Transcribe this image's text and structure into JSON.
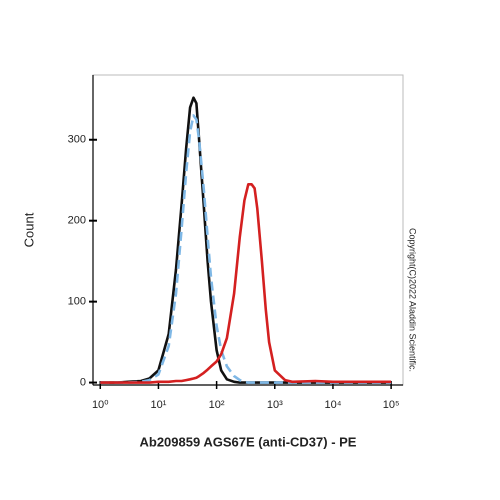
{
  "chart_data": {
    "type": "line",
    "x_label": "Ab209859 AGS67E (anti-CD37) - PE",
    "y_label": "Count",
    "annotation": "Copyright(C)2022 Aladdin Scientific.",
    "x_log": true,
    "x": [
      1,
      2,
      3,
      5,
      7,
      10,
      15,
      20,
      25,
      30,
      35,
      40,
      45,
      50,
      60,
      70,
      80,
      100,
      120,
      150,
      200,
      250,
      300,
      350,
      400,
      450,
      500,
      600,
      700,
      800,
      1000,
      1500,
      2000,
      5000,
      10000,
      100000
    ],
    "series": [
      {
        "color": "#111111",
        "dash": false,
        "values": [
          0,
          0,
          1,
          2,
          5,
          15,
          60,
          140,
          220,
          290,
          340,
          352,
          345,
          300,
          220,
          150,
          100,
          40,
          15,
          4,
          1,
          0,
          0,
          0,
          0,
          0,
          0,
          0,
          0,
          0,
          0,
          0,
          0,
          0,
          0,
          0
        ]
      },
      {
        "color": "#7fb8e6",
        "dash": true,
        "values": [
          0,
          0,
          0,
          1,
          3,
          10,
          45,
          110,
          190,
          260,
          310,
          330,
          325,
          300,
          240,
          180,
          130,
          70,
          40,
          20,
          8,
          3,
          1,
          0,
          0,
          0,
          0,
          0,
          0,
          0,
          0,
          0,
          0,
          0,
          0,
          0
        ]
      },
      {
        "color": "#d42020",
        "dash": false,
        "values": [
          0,
          0,
          0,
          0,
          0,
          1,
          1,
          2,
          2,
          3,
          4,
          5,
          6,
          8,
          12,
          16,
          20,
          26,
          35,
          55,
          110,
          180,
          225,
          245,
          245,
          240,
          215,
          150,
          90,
          50,
          15,
          3,
          1,
          2,
          1,
          1
        ]
      }
    ],
    "xlim": [
      0.75,
      160000
    ],
    "ylim": [
      -3,
      380
    ],
    "xticks": [
      {
        "value": 1,
        "label": "10⁰"
      },
      {
        "value": 10,
        "label": "10¹"
      },
      {
        "value": 100,
        "label": "10²"
      },
      {
        "value": 1000,
        "label": "10³"
      },
      {
        "value": 10000,
        "label": "10⁴"
      },
      {
        "value": 100000,
        "label": "10⁵"
      }
    ],
    "yticks": [
      0,
      100,
      200,
      300
    ]
  }
}
